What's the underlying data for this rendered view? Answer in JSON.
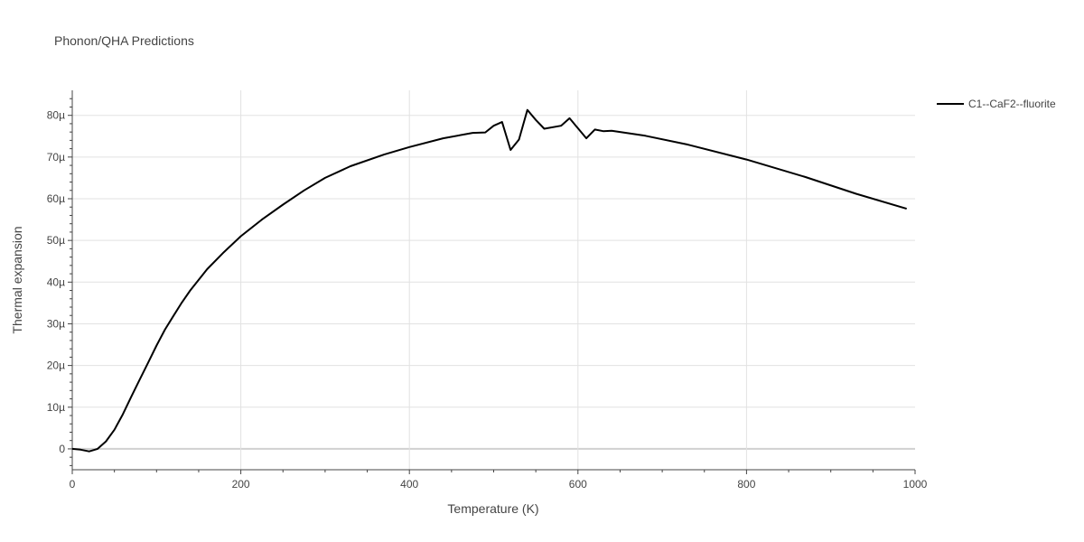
{
  "chart_data": {
    "type": "line",
    "title": "Phonon/QHA Predictions",
    "xlabel": "Temperature (K)",
    "ylabel": "Thermal expansion",
    "xlim": [
      0,
      1000
    ],
    "ylim": [
      -5e-06,
      8.6e-05
    ],
    "xticks": [
      0,
      200,
      400,
      600,
      800,
      1000
    ],
    "xtick_labels": [
      "0",
      "200",
      "400",
      "600",
      "800",
      "1000"
    ],
    "yticks": [
      0,
      1e-05,
      2e-05,
      3e-05,
      4e-05,
      5e-05,
      6e-05,
      7e-05,
      8e-05
    ],
    "ytick_labels": [
      "0",
      "10µ",
      "20µ",
      "30µ",
      "40µ",
      "50µ",
      "60µ",
      "70µ",
      "80µ"
    ],
    "grid": true,
    "legend_position": "top-right",
    "line_color": "#000000",
    "series": [
      {
        "name": "C1--CaF2--fluorite",
        "x": [
          0,
          10,
          20,
          30,
          40,
          50,
          60,
          70,
          80,
          90,
          100,
          110,
          120,
          130,
          140,
          160,
          180,
          200,
          225,
          250,
          275,
          300,
          330,
          370,
          400,
          440,
          475,
          490,
          500,
          510,
          520,
          530,
          540,
          550,
          560,
          580,
          590,
          600,
          610,
          620,
          630,
          640,
          680,
          730,
          800,
          870,
          930,
          990
        ],
        "y": [
          0,
          -2e-07,
          -6e-07,
          0,
          1.8e-06,
          4.6e-06,
          8.3e-06,
          1.25e-05,
          1.66e-05,
          2.07e-05,
          2.48e-05,
          2.86e-05,
          3.19e-05,
          3.51e-05,
          3.8e-05,
          4.31e-05,
          4.72e-05,
          5.1e-05,
          5.5e-05,
          5.86e-05,
          6.2e-05,
          6.5e-05,
          6.78e-05,
          7.06e-05,
          7.24e-05,
          7.45e-05,
          7.58e-05,
          7.59e-05,
          7.75e-05,
          7.84e-05,
          7.17e-05,
          7.42e-05,
          8.13e-05,
          7.89e-05,
          7.68e-05,
          7.75e-05,
          7.93e-05,
          7.69e-05,
          7.45e-05,
          7.66e-05,
          7.62e-05,
          7.63e-05,
          7.51e-05,
          7.3e-05,
          6.94e-05,
          6.52e-05,
          6.12e-05,
          5.76e-05
        ]
      }
    ]
  }
}
